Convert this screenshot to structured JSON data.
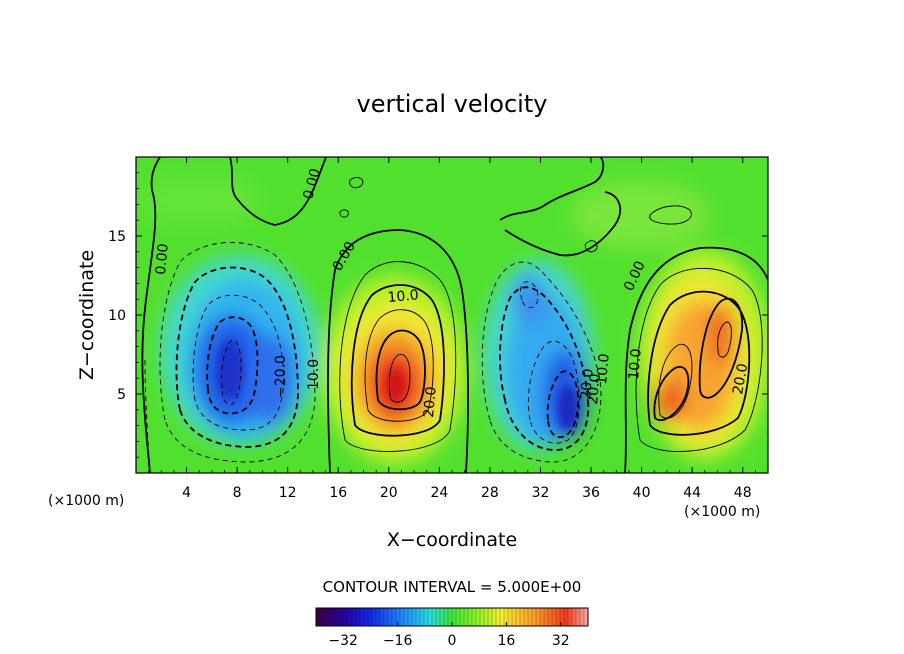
{
  "chart_data": {
    "type": "heatmap",
    "title": "vertical velocity",
    "xlabel": "X−coordinate",
    "ylabel": "Z−coordinate",
    "x_unit_left": "(×1000 m)",
    "x_unit_right": "(×1000 m)",
    "xlim": [
      0,
      50
    ],
    "ylim": [
      0,
      20
    ],
    "x_ticks": [
      4,
      8,
      12,
      16,
      20,
      24,
      28,
      32,
      36,
      40,
      44,
      48
    ],
    "y_ticks": [
      5,
      10,
      15
    ],
    "contour_interval_text": "CONTOUR INTERVAL =  5.000E+00",
    "contour_labels": [
      "0.00",
      "0.00",
      "0.00",
      "0.00",
      "−20.0",
      "10.0",
      "10.0",
      "20.0",
      "20.0",
      "10.0",
      "20.0",
      "10.0",
      "20.0"
    ],
    "colorbar": {
      "range": [
        -40,
        40
      ],
      "ticks": [
        -32,
        -16,
        0,
        16,
        32
      ],
      "tick_labels": [
        "−32",
        "−16",
        "0",
        "16",
        "32"
      ]
    },
    "cells": [
      {
        "x": 7.5,
        "z": 7,
        "value": -24
      },
      {
        "x": 9.5,
        "z": 6,
        "value": -22
      },
      {
        "x": 21,
        "z": 5.5,
        "value": 30
      },
      {
        "x": 33.5,
        "z": 4,
        "value": -30
      },
      {
        "x": 31.5,
        "z": 11,
        "value": -17
      },
      {
        "x": 44.5,
        "z": 5,
        "value": 25
      },
      {
        "x": 46.5,
        "z": 8.5,
        "value": 26
      }
    ]
  }
}
